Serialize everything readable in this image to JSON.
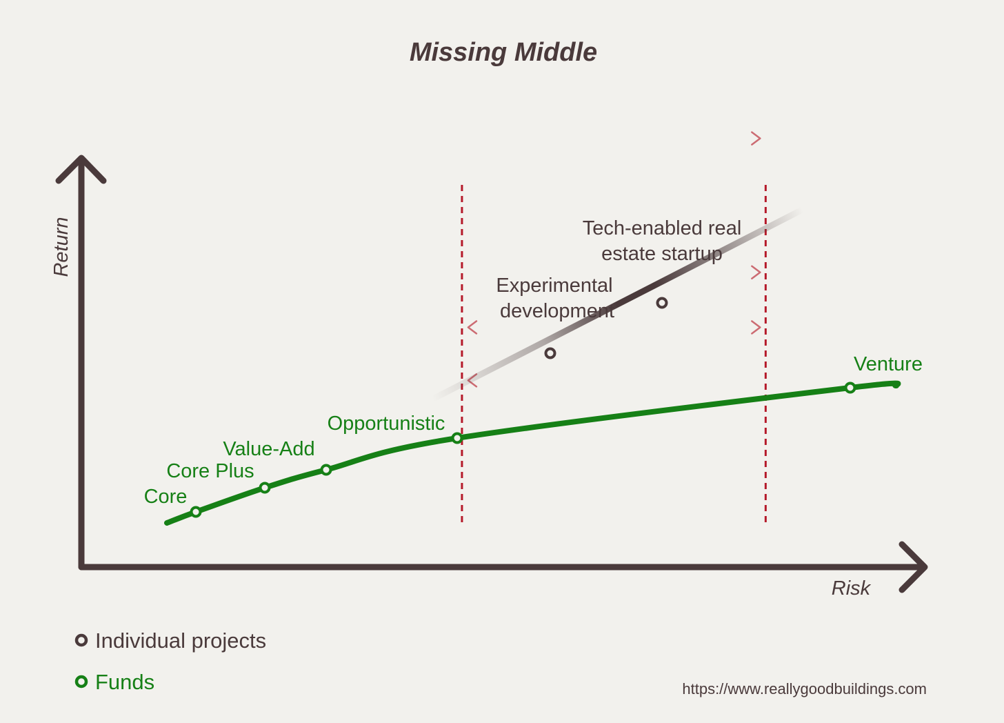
{
  "chart_data": {
    "type": "line",
    "title": "Missing Middle",
    "xlabel": "Risk",
    "ylabel": "Return",
    "grid": false,
    "legend_position": "bottom-left",
    "legend": [
      {
        "label": "Individual projects",
        "series": "projects"
      },
      {
        "label": "Funds",
        "series": "funds"
      }
    ],
    "source": "https://www.reallygoodbuildings.com",
    "colors": {
      "background": "#f2f1ed",
      "axis": "#4a3a3b",
      "funds": "#168016",
      "projects": "#4a3a3b",
      "bounds": "#b51a2a",
      "arrows": "#cc6b72",
      "text_dark": "#4a3a3b",
      "text_green": "#168016"
    },
    "series": [
      {
        "id": "funds",
        "points": [
          {
            "label": "Core",
            "risk": 1.0,
            "return": 1.35
          },
          {
            "label": "Core Plus",
            "risk": 1.95,
            "return": 2.05
          },
          {
            "label": "Value-Add",
            "risk": 2.8,
            "return": 2.6
          },
          {
            "label": "Opportunistic",
            "risk": 4.6,
            "return": 3.5
          },
          {
            "label": "Venture",
            "risk": 10.1,
            "return": 5.2
          }
        ]
      },
      {
        "id": "projects",
        "points": [
          {
            "label": "Experimental development",
            "risk": 6.4,
            "return": 5.9
          },
          {
            "label": "Tech-enabled real estate startup",
            "risk": 7.95,
            "return": 7.4
          }
        ]
      }
    ],
    "missing_middle_bounds": {
      "x": [
        4.95,
        8.9
      ]
    },
    "arrows": [
      {
        "direction": "right",
        "return": 10.5
      },
      {
        "direction": "right",
        "return": 7.4
      },
      {
        "direction": "right",
        "return": 6.0
      },
      {
        "direction": "left",
        "return": 6.0
      },
      {
        "direction": "left",
        "return": 4.65
      }
    ]
  }
}
